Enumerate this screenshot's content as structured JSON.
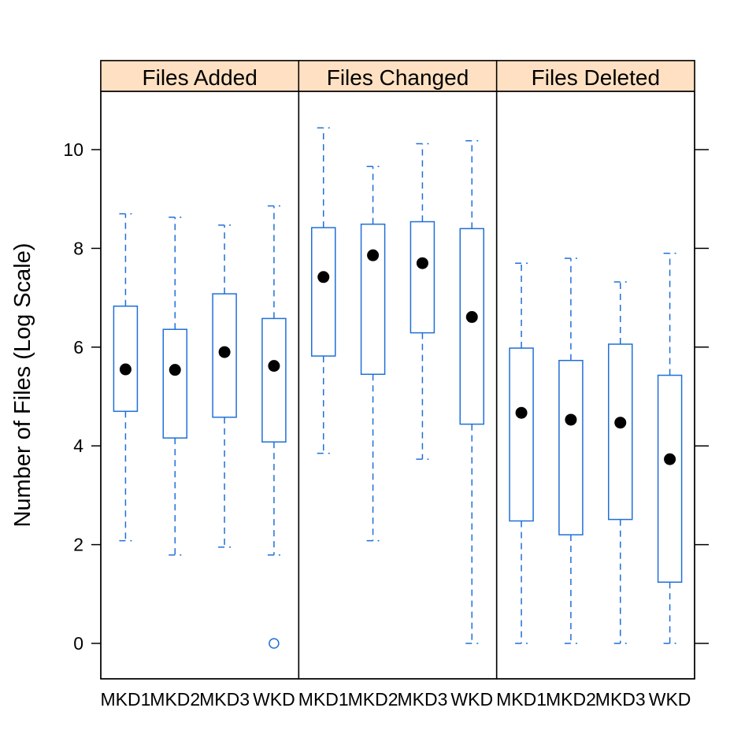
{
  "chart_data": {
    "type": "boxplot",
    "ylabel": "Number of Files (Log Scale)",
    "yticks": [
      0,
      2,
      4,
      6,
      8,
      10
    ],
    "ylim": [
      -0.7,
      11.2
    ],
    "categories": [
      "MKD1",
      "MKD2",
      "MKD3",
      "WKD"
    ],
    "colors": {
      "box": "#1f6fd8",
      "median": "#000000",
      "strip": "#ffe0c2",
      "frame": "#000000"
    },
    "panels": [
      {
        "title": "Files Added",
        "boxes": [
          {
            "category": "MKD1",
            "min": 2.08,
            "q1": 4.7,
            "median": 5.55,
            "q3": 6.83,
            "max": 8.7,
            "outliers": []
          },
          {
            "category": "MKD2",
            "min": 1.79,
            "q1": 4.16,
            "median": 5.54,
            "q3": 6.36,
            "max": 8.63,
            "outliers": []
          },
          {
            "category": "MKD3",
            "min": 1.95,
            "q1": 4.58,
            "median": 5.9,
            "q3": 7.08,
            "max": 8.47,
            "outliers": []
          },
          {
            "category": "WKD",
            "min": 1.79,
            "q1": 4.08,
            "median": 5.62,
            "q3": 6.58,
            "max": 8.86,
            "outliers": [
              0
            ]
          }
        ]
      },
      {
        "title": "Files Changed",
        "boxes": [
          {
            "category": "MKD1",
            "min": 3.85,
            "q1": 5.82,
            "median": 7.42,
            "q3": 8.42,
            "max": 10.44,
            "outliers": []
          },
          {
            "category": "MKD2",
            "min": 2.08,
            "q1": 5.45,
            "median": 7.86,
            "q3": 8.49,
            "max": 9.66,
            "outliers": []
          },
          {
            "category": "MKD3",
            "min": 3.73,
            "q1": 6.29,
            "median": 7.7,
            "q3": 8.54,
            "max": 10.12,
            "outliers": []
          },
          {
            "category": "WKD",
            "min": 0.0,
            "q1": 4.44,
            "median": 6.61,
            "q3": 8.4,
            "max": 10.18,
            "outliers": []
          }
        ]
      },
      {
        "title": "Files Deleted",
        "boxes": [
          {
            "category": "MKD1",
            "min": 0.0,
            "q1": 2.48,
            "median": 4.67,
            "q3": 5.98,
            "max": 7.7,
            "outliers": []
          },
          {
            "category": "MKD2",
            "min": 0.0,
            "q1": 2.2,
            "median": 4.53,
            "q3": 5.73,
            "max": 7.8,
            "outliers": []
          },
          {
            "category": "MKD3",
            "min": 0.0,
            "q1": 2.51,
            "median": 4.47,
            "q3": 6.06,
            "max": 7.32,
            "outliers": []
          },
          {
            "category": "WKD",
            "min": 0.0,
            "q1": 1.24,
            "median": 3.73,
            "q3": 5.43,
            "max": 7.9,
            "outliers": []
          }
        ]
      }
    ]
  }
}
